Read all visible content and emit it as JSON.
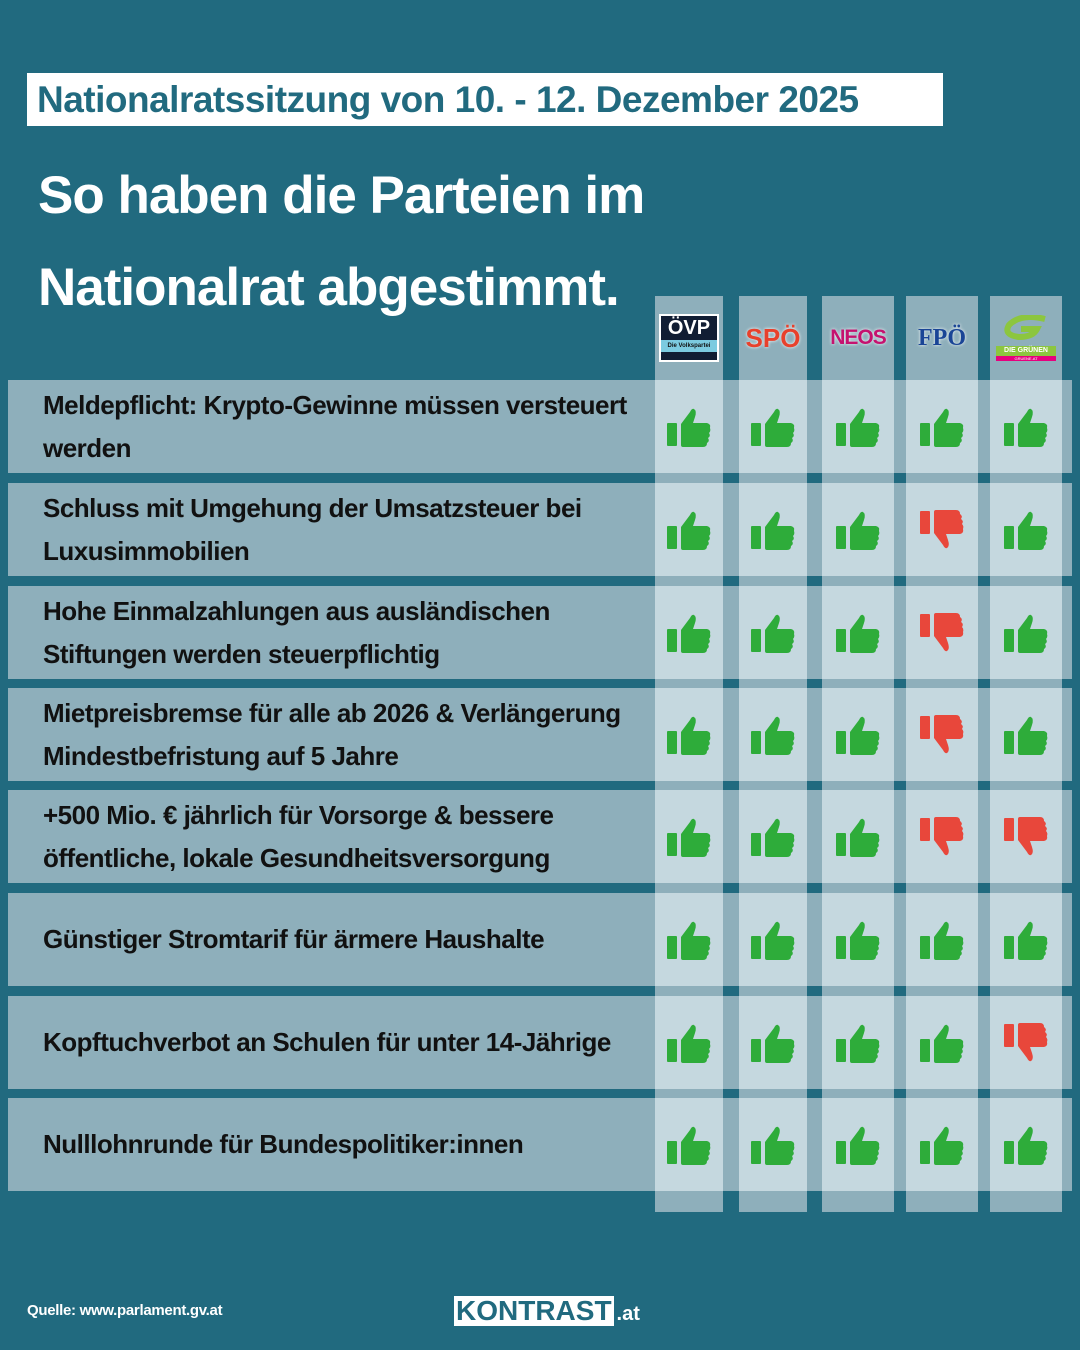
{
  "subtitle": "Nationalratssitzung von 10. - 12. Dezember 2025",
  "title_line1": "So haben die Parteien im",
  "title_line2": "Nationalrat abgestimmt.",
  "parties": [
    {
      "name": "ÖVP",
      "sub": "Die Volkspartei"
    },
    {
      "name": "SPÖ"
    },
    {
      "name": "NEOS"
    },
    {
      "name": "FPÖ"
    },
    {
      "name": "DIE GRÜNEN",
      "sub": "GRUENE.AT"
    }
  ],
  "colors": {
    "yes": "#2eac3a",
    "no": "#e8473b",
    "background": "#216a7f"
  },
  "rows": [
    {
      "label": "Meldepflicht: Krypto-Gewinne müssen versteuert werden",
      "votes": [
        "yes",
        "yes",
        "yes",
        "yes",
        "yes"
      ]
    },
    {
      "label": "Schluss mit Umgehung der Umsatzsteuer bei Luxusimmobilien",
      "votes": [
        "yes",
        "yes",
        "yes",
        "no",
        "yes"
      ]
    },
    {
      "label": "Hohe Einmalzahlungen aus ausländischen Stiftungen werden steuerpflichtig",
      "votes": [
        "yes",
        "yes",
        "yes",
        "no",
        "yes"
      ]
    },
    {
      "label": "Mietpreisbremse für alle ab 2026 & Verlängerung Mindestbefristung auf 5 Jahre",
      "votes": [
        "yes",
        "yes",
        "yes",
        "no",
        "yes"
      ]
    },
    {
      "label": "+500 Mio. € jährlich für Vorsorge & bessere öffentliche, lokale Gesundheitsversorgung",
      "votes": [
        "yes",
        "yes",
        "yes",
        "no",
        "no"
      ]
    },
    {
      "label": "Günstiger Stromtarif für ärmere Haushalte",
      "votes": [
        "yes",
        "yes",
        "yes",
        "yes",
        "yes"
      ]
    },
    {
      "label": "Kopftuchverbot an Schulen für unter 14-Jährige",
      "votes": [
        "yes",
        "yes",
        "yes",
        "yes",
        "no"
      ]
    },
    {
      "label": "Nulllohnrunde für Bundespolitiker:innen",
      "votes": [
        "yes",
        "yes",
        "yes",
        "yes",
        "yes"
      ]
    }
  ],
  "footer": {
    "source": "Quelle: www.parlament.gv.at",
    "logo_main": "KONTRAST",
    "logo_suffix": ".at"
  }
}
